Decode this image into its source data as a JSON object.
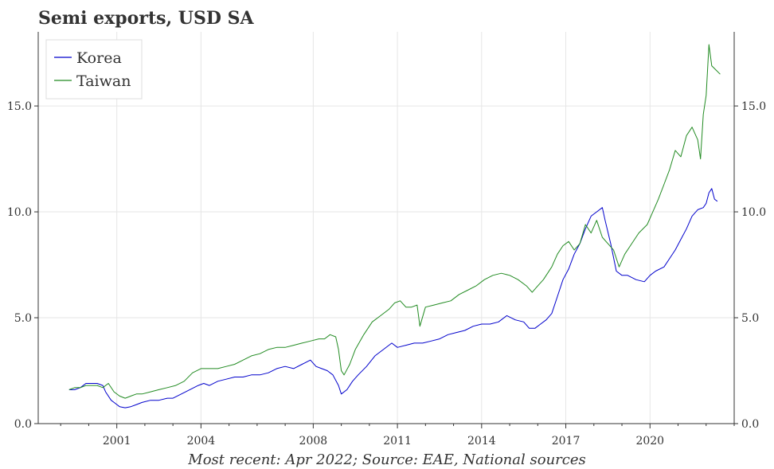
{
  "chart_data": {
    "type": "line",
    "title": "Semi exports, USD SA",
    "footnote": "Most recent: Apr 2022; Source: EAE, National sources",
    "xlabel": "",
    "ylabel": "",
    "x_range": [
      1998.2,
      2023.0
    ],
    "ylim": [
      0,
      18.5
    ],
    "y_ticks": [
      0.0,
      5.0,
      10.0,
      15.0
    ],
    "y_tick_labels": [
      "0.0",
      "5.0",
      "10.0",
      "15.0"
    ],
    "x_ticks": [
      2001,
      2004,
      2008,
      2011,
      2014,
      2017,
      2020
    ],
    "x_tick_labels": [
      "2001",
      "2004",
      "2008",
      "2011",
      "2014",
      "2017",
      "2020"
    ],
    "grid": true,
    "legend_position": "top-left",
    "series": [
      {
        "name": "Korea",
        "color": "#0000cc",
        "points": [
          [
            1999.3,
            1.6
          ],
          [
            1999.5,
            1.6
          ],
          [
            1999.7,
            1.7
          ],
          [
            1999.9,
            1.9
          ],
          [
            2000.1,
            1.9
          ],
          [
            2000.3,
            1.9
          ],
          [
            2000.5,
            1.8
          ],
          [
            2000.6,
            1.5
          ],
          [
            2000.8,
            1.1
          ],
          [
            2000.9,
            1.0
          ],
          [
            2001.1,
            0.8
          ],
          [
            2001.3,
            0.75
          ],
          [
            2001.5,
            0.8
          ],
          [
            2001.7,
            0.9
          ],
          [
            2001.9,
            1.0
          ],
          [
            2002.2,
            1.1
          ],
          [
            2002.5,
            1.1
          ],
          [
            2002.8,
            1.2
          ],
          [
            2003.0,
            1.2
          ],
          [
            2003.3,
            1.4
          ],
          [
            2003.6,
            1.6
          ],
          [
            2003.9,
            1.8
          ],
          [
            2004.1,
            1.9
          ],
          [
            2004.3,
            1.8
          ],
          [
            2004.6,
            2.0
          ],
          [
            2004.9,
            2.1
          ],
          [
            2005.2,
            2.2
          ],
          [
            2005.5,
            2.2
          ],
          [
            2005.8,
            2.3
          ],
          [
            2006.1,
            2.3
          ],
          [
            2006.4,
            2.4
          ],
          [
            2006.7,
            2.6
          ],
          [
            2007.0,
            2.7
          ],
          [
            2007.3,
            2.6
          ],
          [
            2007.6,
            2.8
          ],
          [
            2007.9,
            3.0
          ],
          [
            2008.1,
            2.7
          ],
          [
            2008.3,
            2.6
          ],
          [
            2008.5,
            2.5
          ],
          [
            2008.7,
            2.3
          ],
          [
            2008.9,
            1.8
          ],
          [
            2009.0,
            1.4
          ],
          [
            2009.2,
            1.6
          ],
          [
            2009.4,
            2.0
          ],
          [
            2009.6,
            2.3
          ],
          [
            2009.9,
            2.7
          ],
          [
            2010.2,
            3.2
          ],
          [
            2010.5,
            3.5
          ],
          [
            2010.8,
            3.8
          ],
          [
            2011.0,
            3.6
          ],
          [
            2011.3,
            3.7
          ],
          [
            2011.6,
            3.8
          ],
          [
            2011.9,
            3.8
          ],
          [
            2012.2,
            3.9
          ],
          [
            2012.5,
            4.0
          ],
          [
            2012.8,
            4.2
          ],
          [
            2013.1,
            4.3
          ],
          [
            2013.4,
            4.4
          ],
          [
            2013.7,
            4.6
          ],
          [
            2014.0,
            4.7
          ],
          [
            2014.3,
            4.7
          ],
          [
            2014.6,
            4.8
          ],
          [
            2014.9,
            5.1
          ],
          [
            2015.2,
            4.9
          ],
          [
            2015.5,
            4.8
          ],
          [
            2015.7,
            4.5
          ],
          [
            2015.9,
            4.5
          ],
          [
            2016.1,
            4.7
          ],
          [
            2016.3,
            4.9
          ],
          [
            2016.5,
            5.2
          ],
          [
            2016.7,
            6.0
          ],
          [
            2016.9,
            6.8
          ],
          [
            2017.1,
            7.3
          ],
          [
            2017.3,
            8.0
          ],
          [
            2017.5,
            8.5
          ],
          [
            2017.7,
            9.2
          ],
          [
            2017.9,
            9.8
          ],
          [
            2018.1,
            10.0
          ],
          [
            2018.3,
            10.2
          ],
          [
            2018.4,
            9.6
          ],
          [
            2018.6,
            8.5
          ],
          [
            2018.8,
            7.2
          ],
          [
            2019.0,
            7.0
          ],
          [
            2019.2,
            7.0
          ],
          [
            2019.5,
            6.8
          ],
          [
            2019.8,
            6.7
          ],
          [
            2020.0,
            7.0
          ],
          [
            2020.2,
            7.2
          ],
          [
            2020.5,
            7.4
          ],
          [
            2020.7,
            7.8
          ],
          [
            2020.9,
            8.2
          ],
          [
            2021.1,
            8.7
          ],
          [
            2021.3,
            9.2
          ],
          [
            2021.5,
            9.8
          ],
          [
            2021.7,
            10.1
          ],
          [
            2021.9,
            10.2
          ],
          [
            2022.0,
            10.4
          ],
          [
            2022.1,
            10.9
          ],
          [
            2022.2,
            11.1
          ],
          [
            2022.3,
            10.6
          ],
          [
            2022.4,
            10.5
          ]
        ]
      },
      {
        "name": "Taiwan",
        "color": "#228b22",
        "points": [
          [
            1999.3,
            1.6
          ],
          [
            1999.5,
            1.7
          ],
          [
            1999.7,
            1.7
          ],
          [
            1999.9,
            1.8
          ],
          [
            2000.1,
            1.8
          ],
          [
            2000.3,
            1.8
          ],
          [
            2000.5,
            1.7
          ],
          [
            2000.7,
            1.9
          ],
          [
            2000.9,
            1.5
          ],
          [
            2001.1,
            1.3
          ],
          [
            2001.3,
            1.2
          ],
          [
            2001.5,
            1.3
          ],
          [
            2001.7,
            1.4
          ],
          [
            2001.9,
            1.4
          ],
          [
            2002.2,
            1.5
          ],
          [
            2002.5,
            1.6
          ],
          [
            2002.8,
            1.7
          ],
          [
            2003.1,
            1.8
          ],
          [
            2003.4,
            2.0
          ],
          [
            2003.7,
            2.4
          ],
          [
            2004.0,
            2.6
          ],
          [
            2004.3,
            2.6
          ],
          [
            2004.6,
            2.6
          ],
          [
            2004.9,
            2.7
          ],
          [
            2005.2,
            2.8
          ],
          [
            2005.5,
            3.0
          ],
          [
            2005.8,
            3.2
          ],
          [
            2006.1,
            3.3
          ],
          [
            2006.4,
            3.5
          ],
          [
            2006.7,
            3.6
          ],
          [
            2007.0,
            3.6
          ],
          [
            2007.3,
            3.7
          ],
          [
            2007.6,
            3.8
          ],
          [
            2007.9,
            3.9
          ],
          [
            2008.2,
            4.0
          ],
          [
            2008.4,
            4.0
          ],
          [
            2008.6,
            4.2
          ],
          [
            2008.8,
            4.1
          ],
          [
            2008.9,
            3.5
          ],
          [
            2009.0,
            2.5
          ],
          [
            2009.1,
            2.3
          ],
          [
            2009.3,
            2.8
          ],
          [
            2009.5,
            3.5
          ],
          [
            2009.8,
            4.2
          ],
          [
            2010.1,
            4.8
          ],
          [
            2010.4,
            5.1
          ],
          [
            2010.7,
            5.4
          ],
          [
            2010.9,
            5.7
          ],
          [
            2011.1,
            5.8
          ],
          [
            2011.3,
            5.5
          ],
          [
            2011.5,
            5.5
          ],
          [
            2011.7,
            5.6
          ],
          [
            2011.8,
            4.6
          ],
          [
            2012.0,
            5.5
          ],
          [
            2012.3,
            5.6
          ],
          [
            2012.6,
            5.7
          ],
          [
            2012.9,
            5.8
          ],
          [
            2013.2,
            6.1
          ],
          [
            2013.5,
            6.3
          ],
          [
            2013.8,
            6.5
          ],
          [
            2014.1,
            6.8
          ],
          [
            2014.4,
            7.0
          ],
          [
            2014.7,
            7.1
          ],
          [
            2015.0,
            7.0
          ],
          [
            2015.3,
            6.8
          ],
          [
            2015.6,
            6.5
          ],
          [
            2015.8,
            6.2
          ],
          [
            2016.0,
            6.5
          ],
          [
            2016.2,
            6.8
          ],
          [
            2016.5,
            7.4
          ],
          [
            2016.7,
            8.0
          ],
          [
            2016.9,
            8.4
          ],
          [
            2017.1,
            8.6
          ],
          [
            2017.3,
            8.2
          ],
          [
            2017.5,
            8.5
          ],
          [
            2017.7,
            9.4
          ],
          [
            2017.9,
            9.0
          ],
          [
            2018.1,
            9.6
          ],
          [
            2018.3,
            8.8
          ],
          [
            2018.5,
            8.5
          ],
          [
            2018.7,
            8.2
          ],
          [
            2018.9,
            7.4
          ],
          [
            2019.1,
            8.0
          ],
          [
            2019.3,
            8.4
          ],
          [
            2019.6,
            9.0
          ],
          [
            2019.9,
            9.4
          ],
          [
            2020.1,
            10.0
          ],
          [
            2020.3,
            10.6
          ],
          [
            2020.5,
            11.3
          ],
          [
            2020.7,
            12.0
          ],
          [
            2020.9,
            12.9
          ],
          [
            2021.1,
            12.6
          ],
          [
            2021.3,
            13.6
          ],
          [
            2021.5,
            14.0
          ],
          [
            2021.7,
            13.4
          ],
          [
            2021.8,
            12.5
          ],
          [
            2021.9,
            14.6
          ],
          [
            2022.0,
            15.5
          ],
          [
            2022.1,
            17.9
          ],
          [
            2022.2,
            16.9
          ],
          [
            2022.35,
            16.7
          ],
          [
            2022.5,
            16.5
          ]
        ]
      }
    ]
  }
}
